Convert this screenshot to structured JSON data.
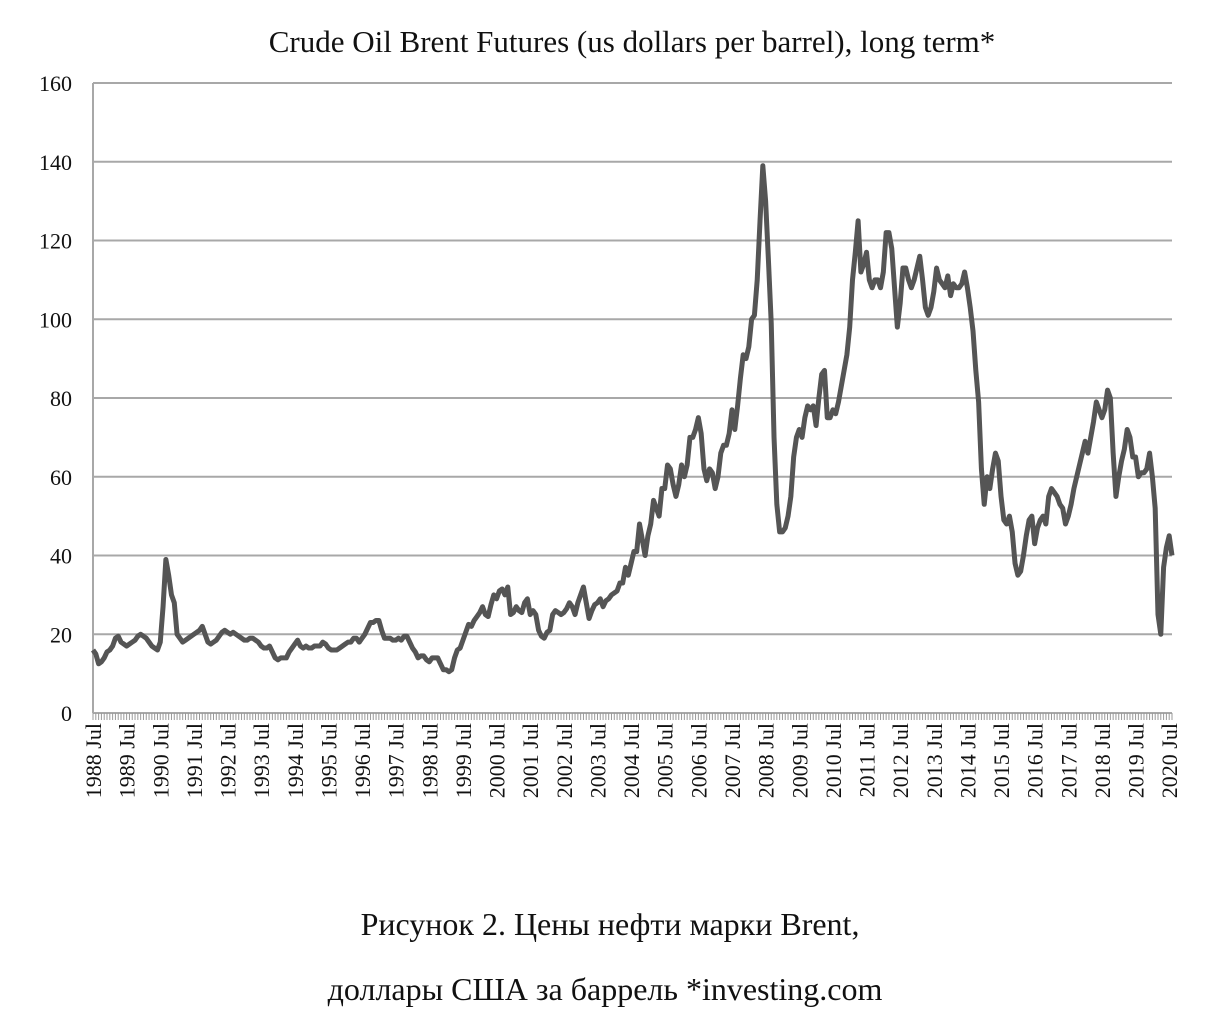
{
  "chart_data": {
    "type": "line",
    "title": "Crude Oil Brent Futures (us dollars per barrel), long term*",
    "caption": [
      "Рисунок 2. Цены нефти марки Brent,",
      "доллары США за баррель *investing.com"
    ],
    "categories": [
      "1988 Jul",
      null,
      null,
      null,
      null,
      null,
      null,
      null,
      null,
      null,
      null,
      null,
      "1989 Jul",
      null,
      null,
      null,
      null,
      null,
      null,
      null,
      null,
      null,
      null,
      null,
      "1990 Jul",
      null,
      null,
      null,
      null,
      null,
      null,
      null,
      null,
      null,
      null,
      null,
      "1991 Jul",
      null,
      null,
      null,
      null,
      null,
      null,
      null,
      null,
      null,
      null,
      null,
      "1992 Jul",
      null,
      null,
      null,
      null,
      null,
      null,
      null,
      null,
      null,
      null,
      null,
      "1993 Jul",
      null,
      null,
      null,
      null,
      null,
      null,
      null,
      null,
      null,
      null,
      null,
      "1994 Jul",
      null,
      null,
      null,
      null,
      null,
      null,
      null,
      null,
      null,
      null,
      null,
      "1995 Jul",
      null,
      null,
      null,
      null,
      null,
      null,
      null,
      null,
      null,
      null,
      null,
      "1996 Jul",
      null,
      null,
      null,
      null,
      null,
      null,
      null,
      null,
      null,
      null,
      null,
      "1997 Jul",
      null,
      null,
      null,
      null,
      null,
      null,
      null,
      null,
      null,
      null,
      null,
      "1998 Jul",
      null,
      null,
      null,
      null,
      null,
      null,
      null,
      null,
      null,
      null,
      null,
      "1999 Jul",
      null,
      null,
      null,
      null,
      null,
      null,
      null,
      null,
      null,
      null,
      null,
      "2000 Jul",
      null,
      null,
      null,
      null,
      null,
      null,
      null,
      null,
      null,
      null,
      null,
      "2001 Jul",
      null,
      null,
      null,
      null,
      null,
      null,
      null,
      null,
      null,
      null,
      null,
      "2002 Jul",
      null,
      null,
      null,
      null,
      null,
      null,
      null,
      null,
      null,
      null,
      null,
      "2003 Jul",
      null,
      null,
      null,
      null,
      null,
      null,
      null,
      null,
      null,
      null,
      null,
      "2004 Jul",
      null,
      null,
      null,
      null,
      null,
      null,
      null,
      null,
      null,
      null,
      null,
      "2005 Jul",
      null,
      null,
      null,
      null,
      null,
      null,
      null,
      null,
      null,
      null,
      null,
      "2006 Jul",
      null,
      null,
      null,
      null,
      null,
      null,
      null,
      null,
      null,
      null,
      null,
      "2007 Jul",
      null,
      null,
      null,
      null,
      null,
      null,
      null,
      null,
      null,
      null,
      null,
      "2008 Jul",
      null,
      null,
      null,
      null,
      null,
      null,
      null,
      null,
      null,
      null,
      null,
      "2009 Jul",
      null,
      null,
      null,
      null,
      null,
      null,
      null,
      null,
      null,
      null,
      null,
      "2010 Jul",
      null,
      null,
      null,
      null,
      null,
      null,
      null,
      null,
      null,
      null,
      null,
      "2011 Jul",
      null,
      null,
      null,
      null,
      null,
      null,
      null,
      null,
      null,
      null,
      null,
      "2012 Jul",
      null,
      null,
      null,
      null,
      null,
      null,
      null,
      null,
      null,
      null,
      null,
      "2013 Jul",
      null,
      null,
      null,
      null,
      null,
      null,
      null,
      null,
      null,
      null,
      null,
      "2014 Jul",
      null,
      null,
      null,
      null,
      null,
      null,
      null,
      null,
      null,
      null,
      null,
      "2015 Jul",
      null,
      null,
      null,
      null,
      null,
      null,
      null,
      null,
      null,
      null,
      null,
      "2016 Jul",
      null,
      null,
      null,
      null,
      null,
      null,
      null,
      null,
      null,
      null,
      null,
      "2017 Jul",
      null,
      null,
      null,
      null,
      null,
      null,
      null,
      null,
      null,
      null,
      null,
      "2018 Jul",
      null,
      null,
      null,
      null,
      null,
      null,
      null,
      null,
      null,
      null,
      null,
      "2019 Jul",
      null,
      null,
      null,
      null,
      null,
      null,
      null,
      null,
      null,
      null,
      null,
      "2020 Jul",
      null
    ],
    "values": [
      16,
      15,
      12.5,
      13,
      14,
      15.5,
      16,
      17,
      19,
      19.5,
      18,
      17.5,
      17,
      17.5,
      18,
      18.5,
      19.5,
      20,
      19.5,
      19,
      18,
      17,
      16.5,
      16,
      18,
      27,
      39,
      35,
      30,
      28,
      20,
      19,
      18,
      18.5,
      19,
      19.5,
      20,
      20.5,
      21,
      22,
      20,
      18,
      17.5,
      18,
      18.5,
      19.5,
      20.5,
      21,
      20.5,
      20,
      20.5,
      20,
      19.5,
      19,
      18.5,
      18.5,
      19,
      19,
      18.5,
      18,
      17,
      16.5,
      16.5,
      17,
      15.5,
      14,
      13.5,
      14,
      14,
      14,
      15.5,
      16.5,
      17.5,
      18.5,
      17,
      16.5,
      17,
      16.5,
      16.5,
      17,
      17,
      17,
      18,
      17.5,
      16.5,
      16,
      16,
      16,
      16.5,
      17,
      17.5,
      18,
      18,
      19,
      19,
      18,
      19,
      20,
      21.5,
      23,
      23,
      23.5,
      23.5,
      21,
      19,
      19,
      19,
      18.5,
      18.5,
      19,
      18.5,
      19.5,
      19.5,
      18,
      16.5,
      15.5,
      14,
      14.5,
      14.5,
      13.5,
      13,
      14,
      14,
      14,
      12.5,
      11,
      11,
      10.5,
      11,
      14,
      16,
      16.5,
      18.5,
      20.5,
      22.5,
      22,
      23.5,
      24.5,
      25.5,
      27,
      25,
      24.5,
      27.5,
      30,
      29,
      31,
      31.5,
      30,
      32,
      25,
      25.5,
      27,
      26,
      25.5,
      28,
      29,
      25,
      26,
      25,
      21,
      19.5,
      19,
      20.5,
      21,
      25,
      26,
      25.5,
      25,
      25.5,
      26.5,
      28,
      27,
      25,
      28,
      30,
      32,
      28,
      24,
      26,
      27.5,
      28,
      29,
      27,
      28.5,
      29,
      30,
      30.5,
      31,
      33,
      33,
      37,
      35,
      38,
      41,
      41,
      48,
      44,
      40,
      45,
      48,
      54,
      52,
      50,
      57,
      57,
      63,
      62,
      58,
      55,
      58,
      63,
      60,
      63,
      70,
      70,
      72,
      75,
      71,
      62,
      59,
      62,
      61,
      57,
      60,
      66,
      68,
      68,
      71,
      77,
      72,
      78,
      85,
      91,
      90,
      93,
      100,
      101,
      110,
      125,
      139,
      130,
      115,
      99,
      70,
      53,
      46,
      46,
      47,
      50,
      55,
      65,
      70,
      72,
      70,
      75,
      78,
      77,
      78,
      73,
      80,
      86,
      87,
      75,
      75,
      77,
      76,
      79,
      83,
      87,
      91,
      98,
      110,
      117,
      125,
      112,
      114,
      117,
      110,
      108,
      110,
      110,
      108,
      112,
      122,
      122,
      118,
      108,
      98,
      104,
      113,
      113,
      110,
      108,
      110,
      113,
      116,
      110,
      103,
      101,
      103,
      107,
      113,
      110,
      109,
      108,
      111,
      106,
      109,
      108,
      108,
      109,
      112,
      108,
      103,
      97,
      87,
      79,
      62,
      53,
      60,
      57,
      62,
      66,
      64,
      55,
      49,
      48,
      50,
      46,
      38,
      35,
      36,
      40,
      45,
      49,
      50,
      43,
      47,
      49,
      50,
      48,
      55,
      57,
      56,
      55,
      53,
      52,
      48,
      50,
      53,
      57,
      60,
      63,
      66,
      69,
      66,
      70,
      74,
      79,
      77,
      75,
      77,
      82,
      80,
      66,
      55,
      60,
      64,
      67,
      72,
      70,
      65,
      65,
      60,
      61,
      61,
      62,
      66,
      60,
      52,
      25,
      20,
      37,
      42,
      45,
      40
    ],
    "color": "#555555",
    "ylim": [
      0,
      160
    ],
    "yticks": [
      0,
      20,
      40,
      60,
      80,
      100,
      120,
      140,
      160
    ],
    "grid": true
  }
}
